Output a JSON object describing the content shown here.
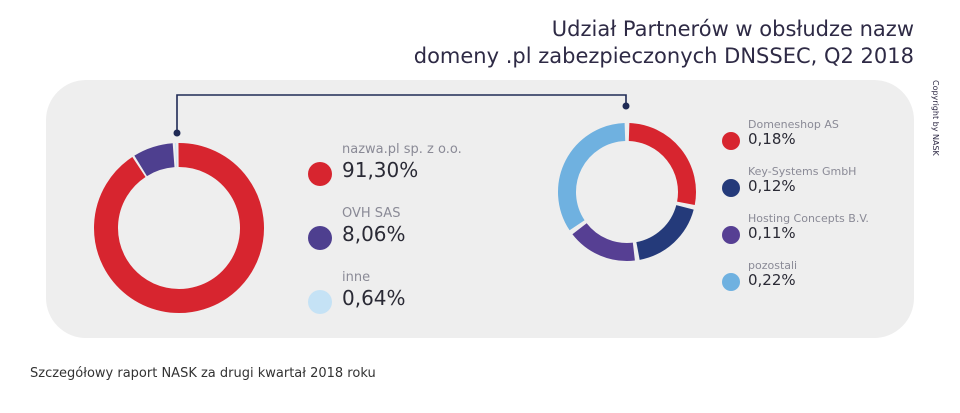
{
  "title": {
    "line1": "Udział Partnerów w obsłudze nazw",
    "line2": "domeny .pl zabezpieczonych DNSSEC, Q2 2018"
  },
  "copyright": "Copyright by NASK",
  "footer_note": "Szczegółowy raport NASK za drugi kwartał 2018 roku",
  "colors": {
    "panel": "#eeeeee",
    "red": "#d7252f",
    "purple": "#4e3f8f",
    "light_blue": "#c5e2f5",
    "navy": "#243a7a",
    "violet": "#563f93",
    "blue": "#6fb1e0",
    "connector": "#1f2a55"
  },
  "chart_data": [
    {
      "type": "pie",
      "variant": "donut",
      "categories": [
        "nazwa.pl sp. z o.o.",
        "OVH SAS",
        "inne"
      ],
      "values": [
        91.3,
        8.06,
        0.64
      ],
      "value_labels": [
        "91,30%",
        "8,06%",
        "0,64%"
      ],
      "colors": [
        "#d7252f",
        "#4e3f8f",
        "#c5e2f5"
      ],
      "legend_position": "right"
    },
    {
      "type": "pie",
      "variant": "donut",
      "categories": [
        "Domeneshop AS",
        "Key-Systems GmbH",
        "Hosting Concepts B.V.",
        "pozostali"
      ],
      "values": [
        0.18,
        0.12,
        0.11,
        0.22
      ],
      "value_labels": [
        "0,18%",
        "0,12%",
        "0,11%",
        "0,22%"
      ],
      "colors": [
        "#d7252f",
        "#243a7a",
        "#563f93",
        "#6fb1e0"
      ],
      "legend_position": "right"
    }
  ]
}
